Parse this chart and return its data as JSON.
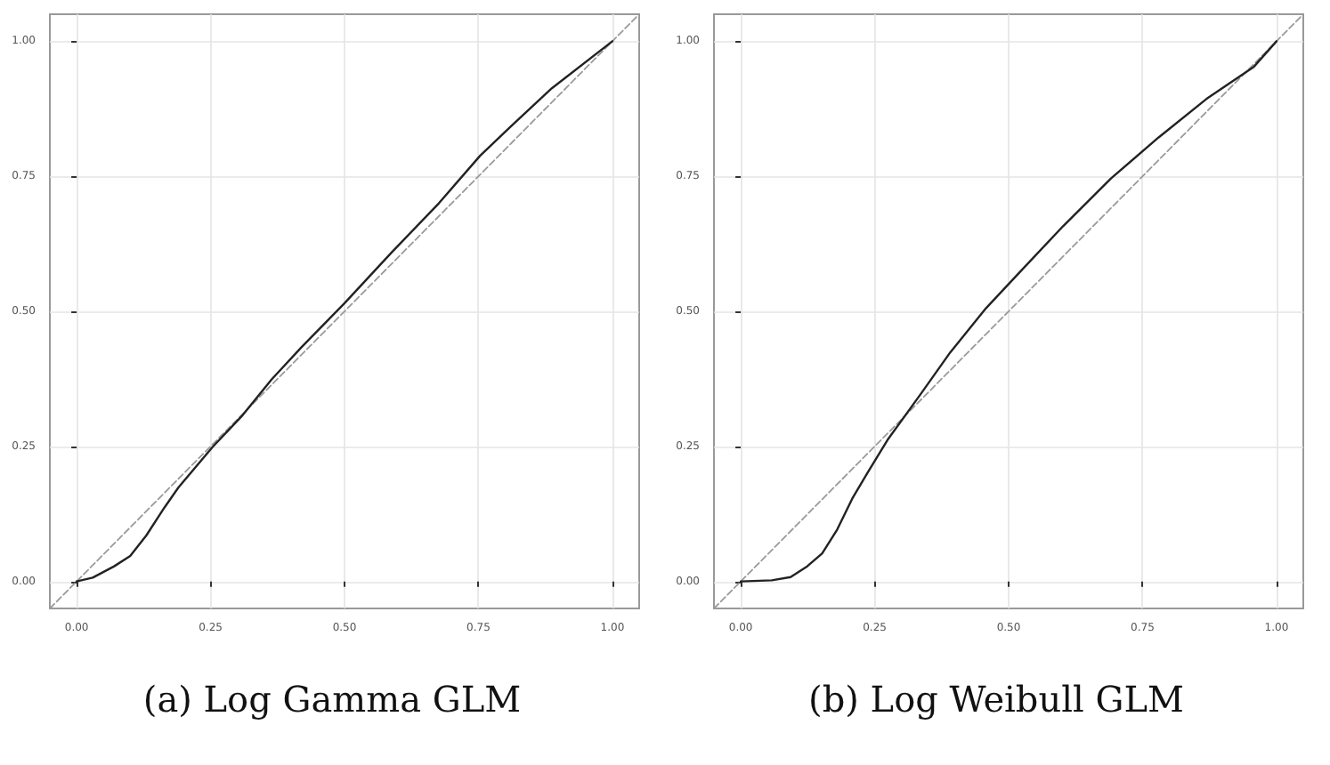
{
  "chart_data": [
    {
      "type": "line",
      "title": "(a) Log Gamma GLM",
      "xlim": [
        -0.05,
        1.05
      ],
      "ylim": [
        -0.05,
        1.05
      ],
      "xticks": [
        {
          "value": 0,
          "label": "0.00"
        },
        {
          "value": 0.25,
          "label": "0.25"
        },
        {
          "value": 0.5,
          "label": "0.50"
        },
        {
          "value": 0.75,
          "label": "0.75"
        },
        {
          "value": 1,
          "label": "1.00"
        }
      ],
      "yticks": [
        {
          "value": 0,
          "label": "0.00"
        },
        {
          "value": 0.25,
          "label": "0.25"
        },
        {
          "value": 0.5,
          "label": "0.50"
        },
        {
          "value": 0.75,
          "label": "0.75"
        },
        {
          "value": 1,
          "label": "1.00"
        }
      ],
      "grid": true,
      "marker": "none",
      "series": [
        {
          "color": "#9a9a9a",
          "line_style": "dashed",
          "x": [
            -0.05,
            1.05
          ],
          "values": [
            -0.05,
            1.05
          ]
        },
        {
          "color": "#222222",
          "line_style": "solid",
          "x": [
            0,
            0.03,
            0.07,
            0.1,
            0.13,
            0.164,
            0.19,
            0.253,
            0.31,
            0.364,
            0.42,
            0.5,
            0.587,
            0.676,
            0.753,
            0.81,
            0.887,
            1
          ],
          "values": [
            0,
            0.007,
            0.028,
            0.047,
            0.085,
            0.137,
            0.174,
            0.248,
            0.308,
            0.374,
            0.434,
            0.515,
            0.608,
            0.7,
            0.788,
            0.842,
            0.913,
            1
          ]
        }
      ]
    },
    {
      "type": "line",
      "title": "(b) Log Weibull GLM",
      "xlim": [
        -0.05,
        1.05
      ],
      "ylim": [
        -0.05,
        1.05
      ],
      "xticks": [
        {
          "value": 0,
          "label": "0.00"
        },
        {
          "value": 0.25,
          "label": "0.25"
        },
        {
          "value": 0.5,
          "label": "0.50"
        },
        {
          "value": 0.75,
          "label": "0.75"
        },
        {
          "value": 1,
          "label": "1.00"
        }
      ],
      "yticks": [
        {
          "value": 0,
          "label": "0.00"
        },
        {
          "value": 0.25,
          "label": "0.25"
        },
        {
          "value": 0.5,
          "label": "0.50"
        },
        {
          "value": 0.75,
          "label": "0.75"
        },
        {
          "value": 1,
          "label": "1.00"
        }
      ],
      "grid": true,
      "marker": "none",
      "series": [
        {
          "color": "#9a9a9a",
          "line_style": "dashed",
          "x": [
            -0.05,
            1.05
          ],
          "values": [
            -0.05,
            1.05
          ]
        },
        {
          "color": "#222222",
          "line_style": "solid",
          "x": [
            0,
            0.058,
            0.093,
            0.124,
            0.152,
            0.18,
            0.208,
            0.236,
            0.274,
            0.336,
            0.391,
            0.458,
            0.524,
            0.602,
            0.691,
            0.78,
            0.869,
            0.958,
            1
          ],
          "values": [
            0,
            0.002,
            0.008,
            0.028,
            0.052,
            0.096,
            0.153,
            0.2,
            0.262,
            0.347,
            0.424,
            0.506,
            0.576,
            0.658,
            0.746,
            0.822,
            0.893,
            0.953,
            1
          ]
        }
      ]
    }
  ]
}
